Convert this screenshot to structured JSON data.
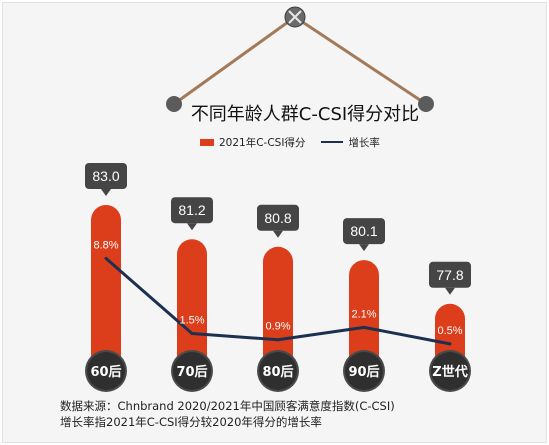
{
  "chart_data": {
    "type": "bar+line",
    "title": "不同年龄人群C-CSI得分对比",
    "categories": [
      "60后",
      "70后",
      "80后",
      "90后",
      "Z世代"
    ],
    "series": [
      {
        "name": "2021年C-CSI得分",
        "type": "bar",
        "values": [
          83.0,
          81.2,
          80.8,
          80.1,
          77.8
        ],
        "labels": [
          "83.0",
          "81.2",
          "80.8",
          "80.1",
          "77.8"
        ]
      },
      {
        "name": "增长率",
        "type": "line",
        "values": [
          8.8,
          1.5,
          0.9,
          2.1,
          0.5
        ],
        "labels": [
          "8.8%",
          "1.5%",
          "0.9%",
          "2.1%",
          "0.5%"
        ]
      }
    ],
    "legend_position": "top-center",
    "bar_range": [
      70,
      85
    ],
    "line_range": [
      0,
      10
    ]
  },
  "footer": {
    "source": "数据来源：Chnbrand 2020/2021年中国顾客满意度指数(C-CSI)",
    "note": "增长率指2021年C-CSI得分较2020年得分的增长率"
  },
  "colors": {
    "bar": "#dc3d1a",
    "line": "#1e3050",
    "callout": "#454545",
    "string": "#a47a58",
    "pin": "#5b5b5b"
  }
}
